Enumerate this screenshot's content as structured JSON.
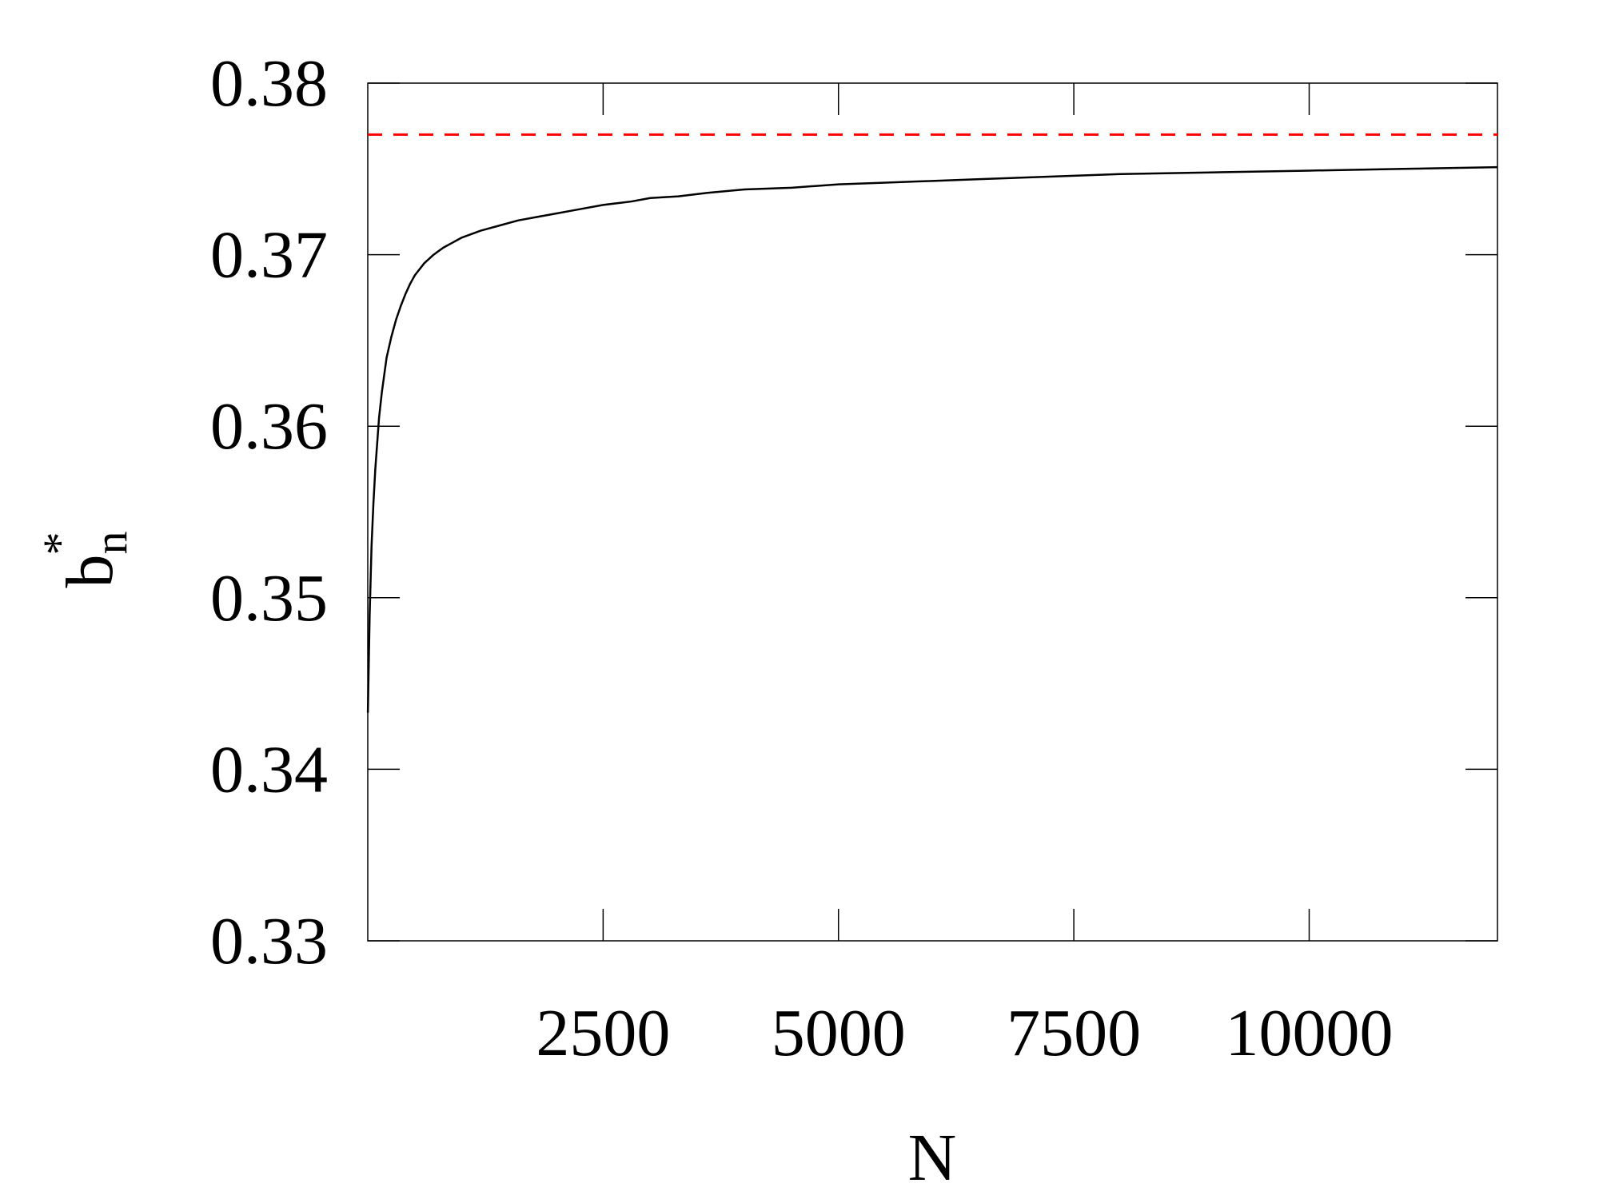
{
  "chart_data": {
    "type": "line",
    "xlabel": "N",
    "ylabel": {
      "base": "b",
      "subscript": "n",
      "superscript": "*"
    },
    "xlim": [
      0,
      12000
    ],
    "ylim": [
      0.33,
      0.38
    ],
    "x_ticks": [
      2500,
      5000,
      7500,
      10000
    ],
    "x_tick_labels": [
      "2500",
      "5000",
      "7500",
      "10000"
    ],
    "y_ticks": [
      0.33,
      0.34,
      0.35,
      0.36,
      0.37,
      0.38
    ],
    "y_tick_labels": [
      "0.33",
      "0.34",
      "0.35",
      "0.36",
      "0.37",
      "0.38"
    ],
    "grid": false,
    "legend": "none",
    "series": [
      {
        "style": "solid",
        "color": "#000000",
        "x": [
          1,
          20,
          40,
          60,
          80,
          100,
          120,
          150,
          180,
          200,
          250,
          300,
          350,
          400,
          450,
          500,
          600,
          700,
          800,
          900,
          1000,
          1200,
          1400,
          1600,
          1800,
          2000,
          2200,
          2500,
          2800,
          3000,
          3300,
          3600,
          4000,
          4500,
          5000,
          5500,
          6000,
          6500,
          7000,
          7500,
          8000,
          9000,
          10000,
          11000,
          12000
        ],
        "y": [
          0.3433,
          0.349,
          0.353,
          0.3555,
          0.3575,
          0.359,
          0.3605,
          0.362,
          0.3632,
          0.364,
          0.3652,
          0.3662,
          0.367,
          0.3677,
          0.3683,
          0.3688,
          0.3695,
          0.37,
          0.3704,
          0.3707,
          0.371,
          0.3714,
          0.3717,
          0.372,
          0.3722,
          0.3724,
          0.3726,
          0.3729,
          0.3731,
          0.3733,
          0.3734,
          0.3736,
          0.3738,
          0.3739,
          0.3741,
          0.3742,
          0.3743,
          0.3744,
          0.3745,
          0.3746,
          0.3747,
          0.3748,
          0.3749,
          0.375,
          0.3751
        ]
      },
      {
        "style": "dashed",
        "color": "#ff0000",
        "x": [
          0,
          12000
        ],
        "y": [
          0.377,
          0.377
        ]
      }
    ]
  }
}
